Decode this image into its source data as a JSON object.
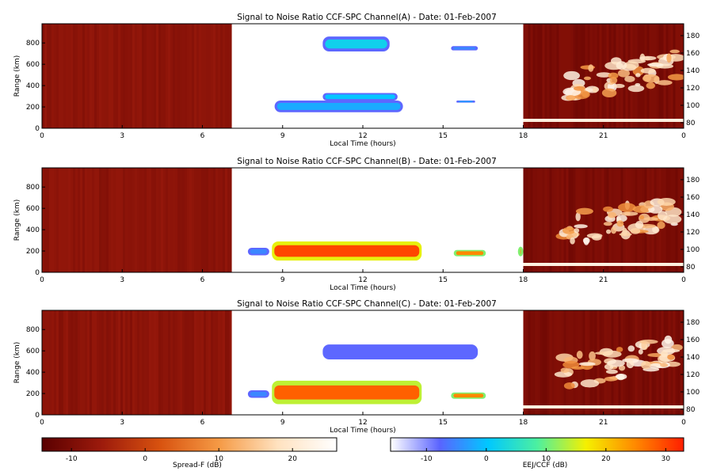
{
  "chart_data": [
    {
      "type": "heatmap",
      "title": "Signal to Noise Ratio CCF-SPC Channel(A) - Date: 01-Feb-2007",
      "xlabel": "Local Time (hours)",
      "ylabel": "Range (km)",
      "xlim": [
        0,
        24
      ],
      "ylim": [
        0,
        980
      ],
      "xticks": [
        "0",
        "3",
        "6",
        "9",
        "12",
        "15",
        "18",
        "21",
        "0"
      ],
      "yticks": [
        "0",
        "200",
        "400",
        "600",
        "800"
      ],
      "y2ticks": [
        "80",
        "100",
        "120",
        "140",
        "160",
        "180"
      ],
      "segments": [
        {
          "name": "",
          "x": [
            0,
            7.1
          ],
          "scale": "Spread-F (dB)",
          "level": -8
        },
        {
          "name": "",
          "x": [
            7.1,
            18
          ],
          "scale": "EEJ/CCF (dB)"
        },
        {
          "name": "",
          "x": [
            18,
            24
          ],
          "scale": "Spread-F (dB)",
          "level": -10
        }
      ],
      "echoes": [
        {
          "x": [
            10.5,
            13.0
          ],
          "y": [
            720,
            860
          ],
          "db": 2
        },
        {
          "x": [
            8.7,
            13.5
          ],
          "y": [
            150,
            260
          ],
          "db": -2
        },
        {
          "x": [
            10.5,
            13.3
          ],
          "y": [
            260,
            330
          ],
          "db": 0
        },
        {
          "x": [
            15.3,
            16.3
          ],
          "y": [
            730,
            770
          ],
          "db": -5
        },
        {
          "x": [
            15.5,
            16.2
          ],
          "y": [
            240,
            260
          ],
          "db": -3
        }
      ]
    },
    {
      "type": "heatmap",
      "title": "Signal to Noise Ratio CCF-SPC Channel(B) - Date: 01-Feb-2007",
      "xlabel": "Local Time (hours)",
      "ylabel": "Range (km)",
      "xlim": [
        0,
        24
      ],
      "ylim": [
        0,
        980
      ],
      "xticks": [
        "0",
        "3",
        "6",
        "9",
        "12",
        "15",
        "18",
        "21",
        "0"
      ],
      "yticks": [
        "0",
        "200",
        "400",
        "600",
        "800"
      ],
      "y2ticks": [
        "80",
        "100",
        "120",
        "140",
        "160",
        "180"
      ],
      "segments": [
        {
          "name": "",
          "x": [
            0,
            7.1
          ],
          "scale": "Spread-F (dB)",
          "level": -8
        },
        {
          "name": "",
          "x": [
            7.1,
            18
          ],
          "scale": "EEJ/CCF (dB)"
        },
        {
          "name": "",
          "x": [
            18,
            24
          ],
          "scale": "Spread-F (dB)",
          "level": -10
        }
      ],
      "echoes": [
        {
          "x": [
            8.6,
            14.2
          ],
          "y": [
            110,
            290
          ],
          "db": 30
        },
        {
          "x": [
            7.7,
            8.5
          ],
          "y": [
            160,
            230
          ],
          "db": -5
        },
        {
          "x": [
            15.4,
            16.6
          ],
          "y": [
            150,
            210
          ],
          "db": 25
        },
        {
          "x": [
            17.8,
            18.0
          ],
          "y": [
            150,
            240
          ],
          "db": 25
        }
      ]
    },
    {
      "type": "heatmap",
      "title": "Signal to Noise Ratio CCF-SPC Channel(C) - Date: 01-Feb-2007",
      "xlabel": "Local Time (hours)",
      "ylabel": "Range (km)",
      "xlim": [
        0,
        24
      ],
      "ylim": [
        0,
        980
      ],
      "xticks": [
        "0",
        "3",
        "6",
        "9",
        "12",
        "15",
        "18",
        "21",
        "0"
      ],
      "yticks": [
        "0",
        "200",
        "400",
        "600",
        "800"
      ],
      "y2ticks": [
        "80",
        "100",
        "120",
        "140",
        "160",
        "180"
      ],
      "segments": [
        {
          "name": "",
          "x": [
            0,
            7.1
          ],
          "scale": "Spread-F (dB)",
          "level": -8
        },
        {
          "name": "",
          "x": [
            7.1,
            18
          ],
          "scale": "EEJ/CCF (dB)"
        },
        {
          "name": "",
          "x": [
            18,
            24
          ],
          "scale": "Spread-F (dB)",
          "level": -10
        }
      ],
      "echoes": [
        {
          "x": [
            8.6,
            14.2
          ],
          "y": [
            100,
            320
          ],
          "db": 28
        },
        {
          "x": [
            7.7,
            8.5
          ],
          "y": [
            160,
            230
          ],
          "db": -5
        },
        {
          "x": [
            15.3,
            16.6
          ],
          "y": [
            150,
            210
          ],
          "db": 25
        },
        {
          "x": [
            10.5,
            16.3
          ],
          "y": [
            520,
            660
          ],
          "db": -8
        }
      ]
    }
  ],
  "colorbars": [
    {
      "label": "Spread-F (dB)",
      "ticks": [
        "-10",
        "0",
        "10",
        "20"
      ],
      "range": [
        -14,
        26
      ],
      "colors": [
        "#5a0000",
        "#9c1a0c",
        "#d8520f",
        "#f59a45",
        "#ffe2c0",
        "#ffffff"
      ]
    },
    {
      "label": "EEJ/CCF (dB)",
      "ticks": [
        "-10",
        "0",
        "10",
        "20",
        "30"
      ],
      "range": [
        -16,
        33
      ],
      "colors": [
        "#ffffff",
        "#5a64ff",
        "#00c8ff",
        "#4cf0a0",
        "#f5f000",
        "#ff8a00",
        "#ff1e00"
      ]
    }
  ]
}
